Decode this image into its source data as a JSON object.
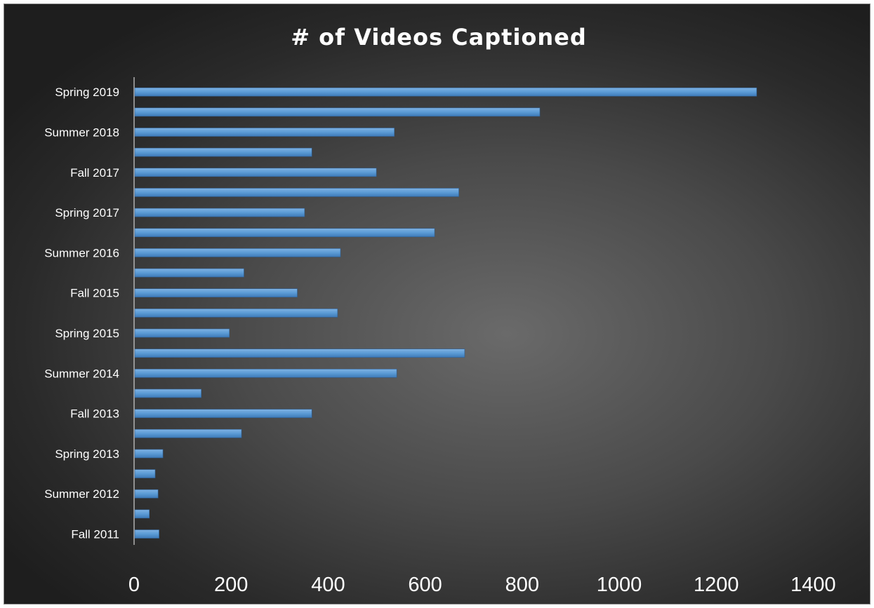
{
  "chart_data": {
    "type": "bar",
    "orientation": "horizontal",
    "title": "# of Videos Captioned",
    "xlabel": "",
    "ylabel": "",
    "xlim": [
      0,
      1400
    ],
    "xticks": [
      0,
      200,
      400,
      600,
      800,
      1000,
      1200,
      1400
    ],
    "grid": false,
    "legend": "none",
    "bar_color": "#5b9bd5",
    "background_color": "#3c3c3c",
    "categories": [
      "Fall 2011",
      "",
      "Summer 2012",
      "",
      "Spring 2013",
      "",
      "Fall 2013",
      "",
      "Summer 2014",
      "",
      "Spring 2015",
      "",
      "Fall 2015",
      "",
      "Summer 2016",
      "",
      "Spring 2017",
      "",
      "Fall 2017",
      "",
      "Summer 2018",
      "",
      "Spring 2019"
    ],
    "values": [
      50,
      30,
      48,
      42,
      58,
      220,
      365,
      137,
      540,
      680,
      195,
      418,
      335,
      225,
      424,
      618,
      350,
      668,
      498,
      365,
      535,
      835,
      1282
    ]
  }
}
